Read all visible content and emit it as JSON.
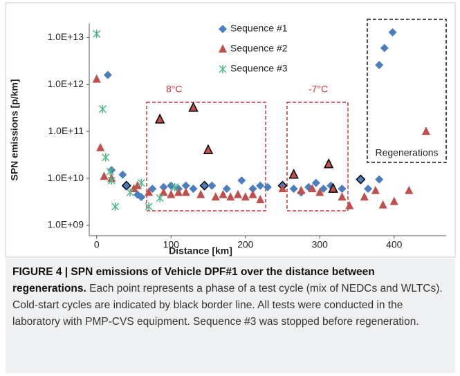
{
  "chart_data": {
    "type": "scatter",
    "x_label": "Distance [km]",
    "y_label": "SPN emissions [p/km]",
    "log_y": true,
    "xlim": [
      -10,
      470
    ],
    "ylim": [
      600000000,
      20000000000000
    ],
    "xticks": [
      0,
      100,
      200,
      300,
      400
    ],
    "yticks": [
      {
        "value": 1000000000,
        "label": "1.0E+09"
      },
      {
        "value": 10000000000,
        "label": "1.0E+10"
      },
      {
        "value": 100000000000,
        "label": "1.0E+11"
      },
      {
        "value": 1000000000000,
        "label": "1.0E+12"
      },
      {
        "value": 10000000000000,
        "label": "1.0E+13"
      }
    ],
    "cold_start_color": "#000000",
    "annotations": [
      "8°C",
      "-7°C",
      "Regenerations"
    ],
    "series": [
      {
        "name": "Sequence #1",
        "marker": "diamond",
        "color": "#4a7ebf",
        "x": [
          15,
          20,
          35,
          40,
          55,
          60,
          75,
          90,
          100,
          110,
          120,
          130,
          145,
          155,
          175,
          195,
          210,
          220,
          230,
          250,
          265,
          275,
          285,
          295,
          305,
          315,
          330,
          355,
          365,
          380,
          380,
          387,
          398
        ],
        "values": [
          1600000000000,
          15000000000,
          12000000000,
          7000000000,
          4500000000,
          4000000000,
          6000000000,
          6500000000,
          7000000000,
          6000000000,
          7000000000,
          6000000000,
          7000000000,
          7000000000,
          6000000000,
          9000000000,
          6000000000,
          7000000000,
          6500000000,
          7000000000,
          6000000000,
          5000000000,
          6500000000,
          8000000000,
          6000000000,
          7000000000,
          6000000000,
          9500000000,
          6000000000,
          9500000000,
          2600000000000,
          6000000000000,
          13000000000000
        ],
        "cold_start": [
          3,
          12,
          19,
          27
        ]
      },
      {
        "name": "Sequence #2",
        "marker": "triangle",
        "color": "#c0504d",
        "x": [
          0,
          5,
          10,
          20,
          50,
          55,
          70,
          85,
          90,
          100,
          110,
          120,
          130,
          140,
          150,
          160,
          170,
          180,
          190,
          200,
          210,
          220,
          250,
          265,
          275,
          290,
          300,
          312,
          318,
          330,
          340,
          360,
          375,
          385,
          400,
          420,
          443
        ],
        "values": [
          1300000000000,
          45000000000,
          11000000000,
          10000000000,
          6000000000,
          7000000000,
          5000000000,
          180000000000,
          5000000000,
          4500000000,
          5000000000,
          5000000000,
          320000000000,
          4500000000,
          40000000000,
          4000000000,
          4500000000,
          4000000000,
          4500000000,
          4000000000,
          4500000000,
          3500000000,
          6000000000,
          12000000000,
          5500000000,
          6000000000,
          5000000000,
          20000000000,
          6000000000,
          4000000000,
          2600000000,
          4000000000,
          5500000000,
          2700000000,
          3200000000,
          5500000000,
          100000000000
        ],
        "cold_start": [
          7,
          12,
          14,
          23,
          27,
          28
        ]
      },
      {
        "name": "Sequence #3",
        "marker": "star",
        "color": "#4fb98a",
        "x": [
          0,
          8,
          12,
          18,
          20,
          25,
          45,
          60,
          70,
          85,
          105
        ],
        "values": [
          12000000000000,
          300000000000,
          28000000000,
          14000000000,
          9000000000,
          2500000000,
          5000000000,
          8000000000,
          2500000000,
          3800000000,
          6500000000
        ],
        "cold_start": []
      }
    ]
  },
  "caption": {
    "label": "FIGURE 4 | SPN emissions of Vehicle DPF#1 over the distance between regenerations.",
    "text": "Each point represents a phase of a test cycle (mix of NEDCs and WLTCs). Cold-start cycles are indicated by black border line. All tests were conducted in the laboratory with PMP-CVS equipment. Sequence #3 was stopped before regeneration."
  }
}
